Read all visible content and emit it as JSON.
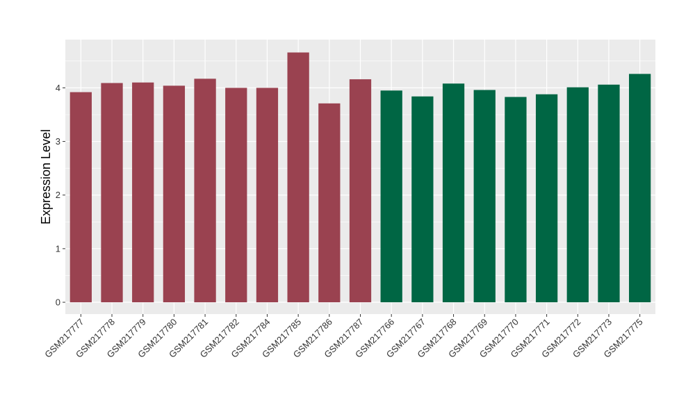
{
  "chart_data": {
    "type": "bar",
    "title": "",
    "xlabel": "",
    "ylabel": "Expression Level",
    "ylim": [
      -0.22,
      4.9
    ],
    "yticks": [
      0,
      1,
      2,
      3,
      4
    ],
    "grid": true,
    "categories": [
      "GSM217777",
      "GSM217778",
      "GSM217779",
      "GSM217780",
      "GSM217781",
      "GSM217782",
      "GSM217784",
      "GSM217785",
      "GSM217786",
      "GSM217787",
      "GSM217766",
      "GSM217767",
      "GSM217768",
      "GSM217769",
      "GSM217770",
      "GSM217771",
      "GSM217772",
      "GSM217773",
      "GSM217775"
    ],
    "values": [
      3.92,
      4.09,
      4.1,
      4.04,
      4.17,
      4.0,
      4.0,
      4.66,
      3.71,
      4.16,
      3.95,
      3.84,
      4.08,
      3.96,
      3.83,
      3.88,
      4.01,
      4.06,
      4.26
    ],
    "colors": [
      "#9a4250",
      "#9a4250",
      "#9a4250",
      "#9a4250",
      "#9a4250",
      "#9a4250",
      "#9a4250",
      "#9a4250",
      "#9a4250",
      "#9a4250",
      "#006644",
      "#006644",
      "#006644",
      "#006644",
      "#006644",
      "#006644",
      "#006644",
      "#006644",
      "#006644"
    ],
    "panel_background": "#ebebeb",
    "grid_color": "#ffffff"
  }
}
